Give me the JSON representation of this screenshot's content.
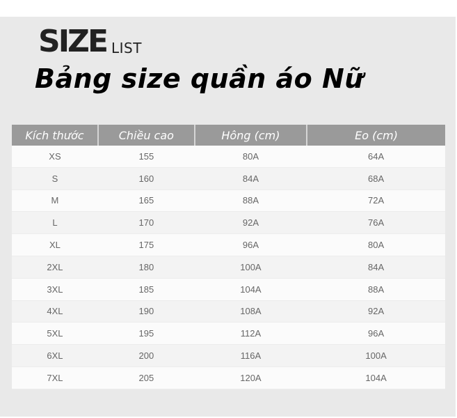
{
  "heading": {
    "size": "SIZE",
    "list": "LIST",
    "title": "Bảng size quần áo Nữ"
  },
  "table": {
    "headers": [
      "Kích thước",
      "Chiều cao",
      "Hông (cm)",
      "Eo (cm)"
    ],
    "rows": [
      [
        "XS",
        "155",
        "80A",
        "64A"
      ],
      [
        "S",
        "160",
        "84A",
        "68A"
      ],
      [
        "M",
        "165",
        "88A",
        "72A"
      ],
      [
        "L",
        "170",
        "92A",
        "76A"
      ],
      [
        "XL",
        "175",
        "96A",
        "80A"
      ],
      [
        "2XL",
        "180",
        "100A",
        "84A"
      ],
      [
        "3XL",
        "185",
        "104A",
        "88A"
      ],
      [
        "4XL",
        "190",
        "108A",
        "92A"
      ],
      [
        "5XL",
        "195",
        "112A",
        "96A"
      ],
      [
        "6XL",
        "200",
        "116A",
        "100A"
      ],
      [
        "7XL",
        "205",
        "120A",
        "104A"
      ]
    ]
  },
  "colors": {
    "header_bg": "#9a9a9a",
    "panel_bg": "#e9e9e9"
  }
}
